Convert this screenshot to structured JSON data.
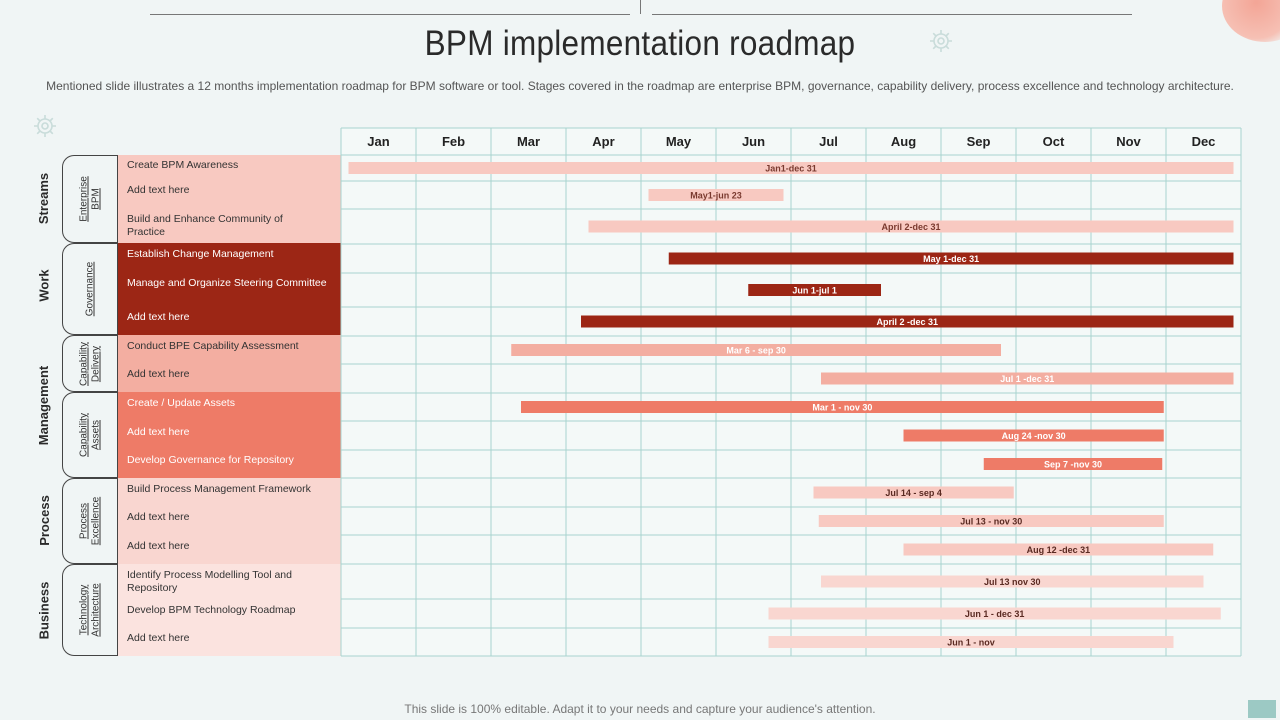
{
  "title": "BPM implementation roadmap",
  "subtitle": "Mentioned slide illustrates a 12 months implementation roadmap for BPM software or tool. Stages covered in the roadmap are enterprise BPM, governance, capability delivery, process excellence and technology architecture.",
  "footer": "This slide is 100% editable. Adapt it to your needs and capture your audience's attention.",
  "streams": [
    "Streams",
    "Work",
    "Management",
    "Process",
    "Business"
  ],
  "colors": {
    "pale": "#f8c9c1",
    "dark": "#9c2615",
    "medium": "#f3aea1",
    "coral": "#ee7b67",
    "lightpink": "#f9d6d0",
    "palest": "#fbe3df",
    "grid": "#a8d4cf",
    "accent": "#9cc9c4"
  },
  "chart_data": {
    "type": "gantt",
    "months": [
      "Jan",
      "Feb",
      "Mar",
      "Apr",
      "May",
      "Jun",
      "Jul",
      "Aug",
      "Sep",
      "Oct",
      "Nov",
      "Dec"
    ],
    "groups": [
      {
        "name": "Enterprise BPM",
        "tasks": [
          {
            "label": "Create BPM  Awareness",
            "bar": "Jan1-dec 31",
            "start": 0.1,
            "end": 11.9
          },
          {
            "label": "Add text here",
            "bar": "May1-jun 23",
            "start": 4.1,
            "end": 5.9
          },
          {
            "label": "Build and Enhance Community of Practice",
            "bar": "April 2-dec 31",
            "start": 3.3,
            "end": 11.9
          }
        ]
      },
      {
        "name": "Governance",
        "tasks": [
          {
            "label": "Establish Change Management",
            "bar": "May 1-dec 31",
            "start": 4.37,
            "end": 11.9
          },
          {
            "label": "Manage and Organize Steering Committee",
            "bar": "Jun 1-jul 1",
            "start": 5.43,
            "end": 7.2
          },
          {
            "label": "Add text here",
            "bar": "April 2 -dec 31",
            "start": 3.2,
            "end": 11.9
          }
        ]
      },
      {
        "name": "Capability Delivery",
        "tasks": [
          {
            "label": "Conduct BPE  Capability Assessment",
            "bar": "Mar 6 - sep 30",
            "start": 2.27,
            "end": 8.8
          },
          {
            "label": "Add text here",
            "bar": "Jul 1 -dec 31",
            "start": 6.4,
            "end": 11.9
          }
        ]
      },
      {
        "name": "Capability Assets",
        "tasks": [
          {
            "label": "Create / Update Assets",
            "bar": "Mar 1 - nov 30",
            "start": 2.4,
            "end": 10.97
          },
          {
            "label": "Add text here",
            "bar": "Aug 24 -nov 30",
            "start": 7.5,
            "end": 10.97
          },
          {
            "label": "Develop Governance for Repository",
            "bar": "Sep 7 -nov 30",
            "start": 8.57,
            "end": 10.95
          }
        ]
      },
      {
        "name": "Process Excellence",
        "tasks": [
          {
            "label": "Build Process Management Framework",
            "bar": "Jul 14 - sep 4",
            "start": 6.3,
            "end": 8.97
          },
          {
            "label": "Add text here",
            "bar": "Jul 13 - nov 30",
            "start": 6.37,
            "end": 10.97
          },
          {
            "label": "Add text here",
            "bar": "Aug  12 -dec 31",
            "start": 7.5,
            "end": 11.63
          }
        ]
      },
      {
        "name": "Technology Architecture",
        "tasks": [
          {
            "label": "Identify Process Modelling Tool and Repository",
            "bar": "Jul 13 nov 30",
            "start": 6.4,
            "end": 11.5
          },
          {
            "label": "Develop BPM  Technology Roadmap",
            "bar": "Jun 1 - dec 31",
            "start": 5.7,
            "end": 11.73
          },
          {
            "label": "Add text here",
            "bar": "Jun 1 - nov",
            "start": 5.7,
            "end": 11.1
          }
        ]
      }
    ]
  }
}
